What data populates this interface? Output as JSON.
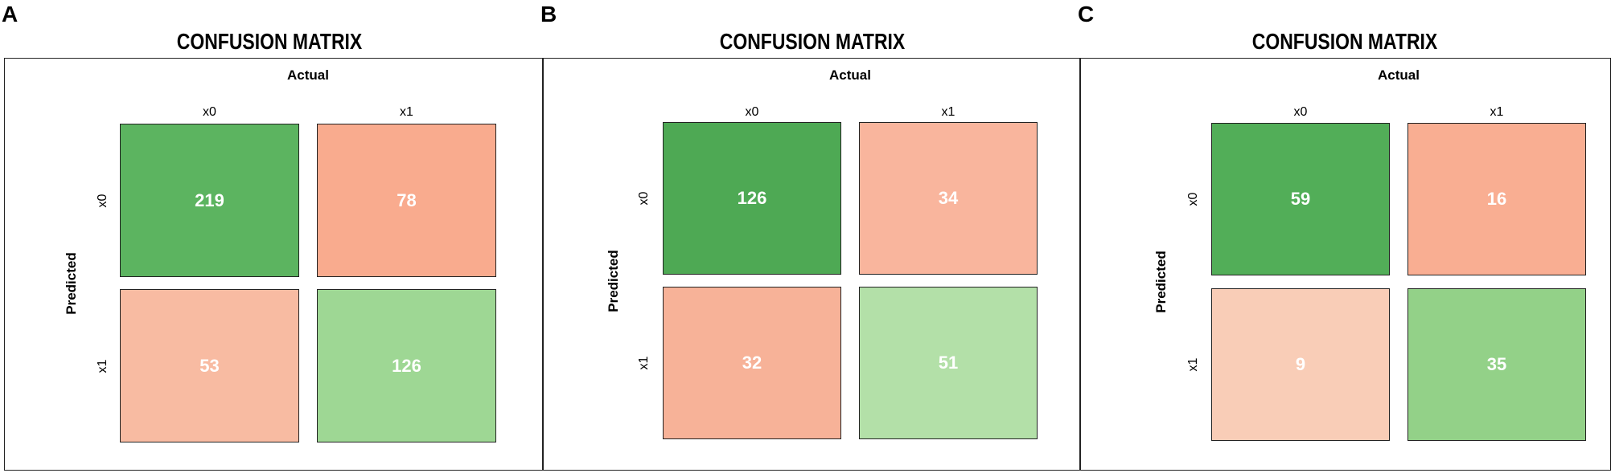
{
  "chart_data": [
    {
      "type": "heatmap",
      "panel_label": "A",
      "title": "CONFUSION MATRIX",
      "xlabel": "Actual",
      "ylabel": "Predicted",
      "x_categories": [
        "x0",
        "x1"
      ],
      "y_categories": [
        "x0",
        "x1"
      ],
      "cells": [
        {
          "predicted": "x0",
          "actual": "x0",
          "value": 219,
          "color": "#5cb460"
        },
        {
          "predicted": "x0",
          "actual": "x1",
          "value": 78,
          "color": "#f9ab8e"
        },
        {
          "predicted": "x1",
          "actual": "x0",
          "value": 53,
          "color": "#f8bba2"
        },
        {
          "predicted": "x1",
          "actual": "x1",
          "value": 126,
          "color": "#9ed794"
        }
      ]
    },
    {
      "type": "heatmap",
      "panel_label": "B",
      "title": "CONFUSION MATRIX",
      "xlabel": "Actual",
      "ylabel": "Predicted",
      "x_categories": [
        "x0",
        "x1"
      ],
      "y_categories": [
        "x0",
        "x1"
      ],
      "cells": [
        {
          "predicted": "x0",
          "actual": "x0",
          "value": 126,
          "color": "#4ea954"
        },
        {
          "predicted": "x0",
          "actual": "x1",
          "value": 34,
          "color": "#f9b59d"
        },
        {
          "predicted": "x1",
          "actual": "x0",
          "value": 32,
          "color": "#f7b298"
        },
        {
          "predicted": "x1",
          "actual": "x1",
          "value": 51,
          "color": "#b3e0a8"
        }
      ]
    },
    {
      "type": "heatmap",
      "panel_label": "C",
      "title": "CONFUSION MATRIX",
      "xlabel": "Actual",
      "ylabel": "Predicted",
      "x_categories": [
        "x0",
        "x1"
      ],
      "y_categories": [
        "x0",
        "x1"
      ],
      "cells": [
        {
          "predicted": "x0",
          "actual": "x0",
          "value": 59,
          "color": "#52ae58"
        },
        {
          "predicted": "x0",
          "actual": "x1",
          "value": 16,
          "color": "#f9ae92"
        },
        {
          "predicted": "x1",
          "actual": "x0",
          "value": 9,
          "color": "#f9cdb7"
        },
        {
          "predicted": "x1",
          "actual": "x1",
          "value": 35,
          "color": "#93d188"
        }
      ]
    }
  ]
}
